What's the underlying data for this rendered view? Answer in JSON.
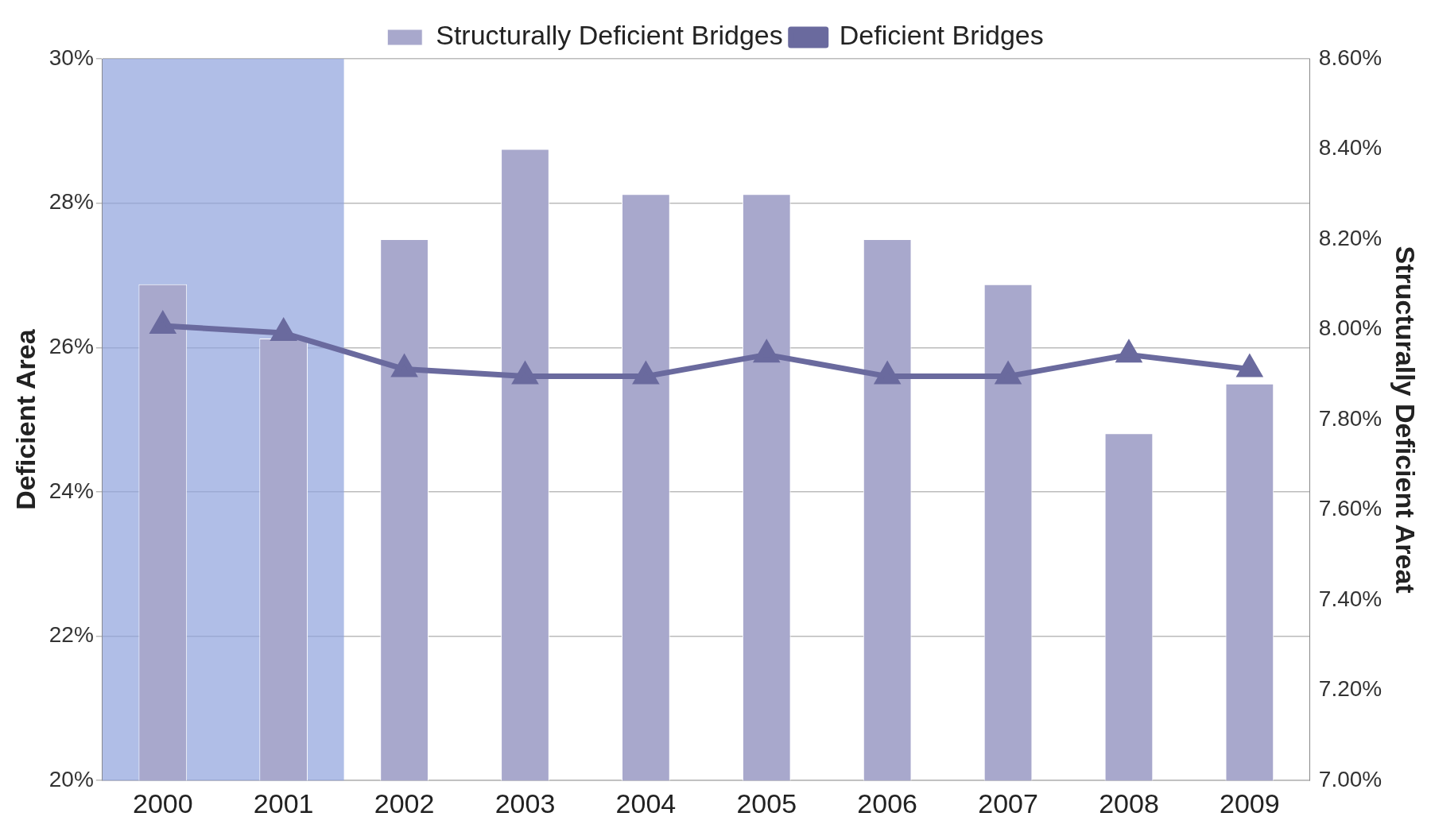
{
  "chart_data": {
    "type": "bar",
    "ylabel": "Deficient Area",
    "y2label": "Structurally Deficient Areat",
    "categories": [
      "2000",
      "2001",
      "2002",
      "2003",
      "2004",
      "2005",
      "2006",
      "2007",
      "2008",
      "2009"
    ],
    "series": [
      {
        "name": "Structurally Deficient Bridges",
        "axis": "y2",
        "color": "#a8a8cc",
        "values": [
          8.1,
          7.98,
          8.2,
          8.4,
          8.3,
          8.3,
          8.2,
          8.1,
          7.77,
          7.88
        ]
      },
      {
        "name": "Deficient Bridges",
        "type": "line",
        "axis": "y",
        "color": "#6a6a9e",
        "values": [
          26.3,
          26.2,
          25.7,
          25.6,
          25.6,
          25.9,
          25.6,
          25.6,
          25.9,
          25.7
        ]
      }
    ],
    "ylim": [
      20,
      30
    ],
    "yticks": [
      {
        "value": 20,
        "label": "20%"
      },
      {
        "value": 22,
        "label": "22%"
      },
      {
        "value": 24,
        "label": "24%"
      },
      {
        "value": 26,
        "label": "26%"
      },
      {
        "value": 28,
        "label": "28%"
      },
      {
        "value": 30,
        "label": "30%"
      }
    ],
    "y2lim": [
      7,
      8.6
    ],
    "y2ticks": [
      {
        "value": 7,
        "label": "7.00%"
      },
      {
        "value": 7.2,
        "label": "7.20%"
      },
      {
        "value": 7.4,
        "label": "7.40%"
      },
      {
        "value": 7.6,
        "label": "7.60%"
      },
      {
        "value": 7.8,
        "label": "7.80%"
      },
      {
        "value": 8,
        "label": "8.00%"
      },
      {
        "value": 8.2,
        "label": "8.20%"
      },
      {
        "value": 8.4,
        "label": "8.40%"
      },
      {
        "value": 8.6,
        "label": "8.60%"
      }
    ],
    "bands": [
      {
        "axis": "x",
        "from": "2000",
        "to": "2001",
        "color": "#8fa3dd"
      }
    ],
    "grid": "y",
    "legend": "top",
    "marker": "triangle"
  }
}
